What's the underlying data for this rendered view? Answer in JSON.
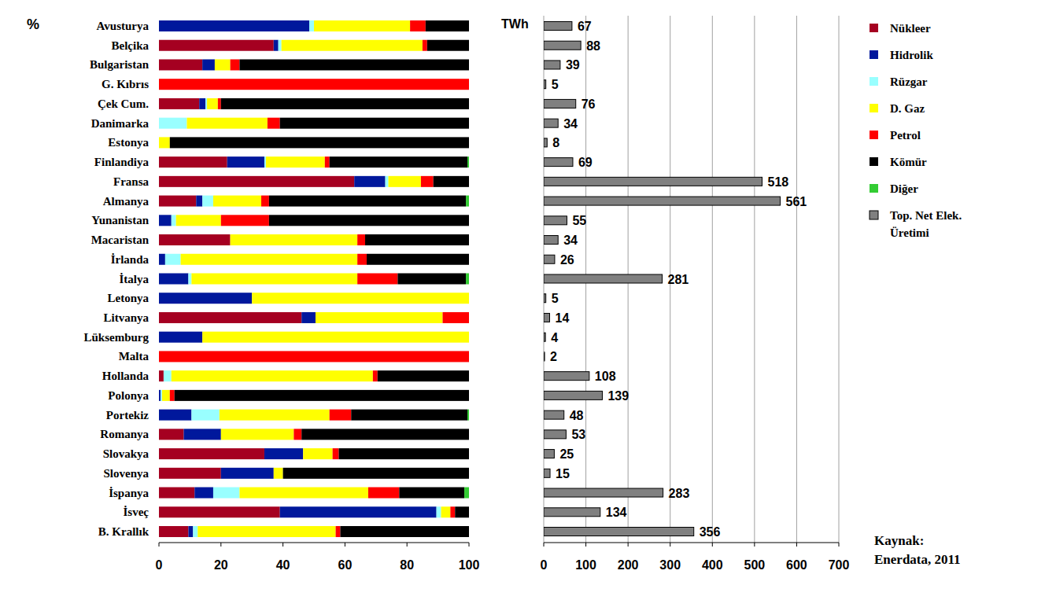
{
  "chart_data": [
    {
      "type": "bar",
      "orientation": "horizontal",
      "stacked": true,
      "title": "%",
      "categories": [
        "Avusturya",
        "Belçika",
        "Bulgaristan",
        "G. Kıbrıs",
        "Çek Cum.",
        "Danimarka",
        "Estonya",
        "Finlandiya",
        "Fransa",
        "Almanya",
        "Yunanistan",
        "Macaristan",
        "İrlanda",
        "İtalya",
        "Letonya",
        "Litvanya",
        "Lüksemburg",
        "Malta",
        "Hollanda",
        "Polonya",
        "Portekiz",
        "Romanya",
        "Slovakya",
        "Slovenya",
        "İspanya",
        "İsveç",
        "B. Krallık"
      ],
      "series": [
        {
          "name": "Nükleer",
          "color": "#A50021",
          "values": [
            0,
            37,
            14,
            0,
            13,
            0,
            0,
            22,
            63,
            12,
            0,
            23,
            0,
            0,
            0,
            46,
            0,
            0,
            1.5,
            0,
            0,
            8,
            34,
            20,
            11.5,
            39,
            9.5
          ]
        },
        {
          "name": "Hidrolik",
          "color": "#00189C",
          "values": [
            48.5,
            1.5,
            4,
            0,
            2,
            0,
            0,
            12,
            10,
            2,
            4,
            0,
            2,
            9.5,
            30,
            4.5,
            14,
            0,
            0,
            0.5,
            10.5,
            12,
            12.5,
            17,
            6,
            50.5,
            1.5
          ]
        },
        {
          "name": "Rüzgar",
          "color": "#99FFFF",
          "values": [
            1.5,
            1,
            0,
            0,
            0.5,
            9,
            0,
            0.5,
            1,
            3.5,
            1.5,
            0,
            5,
            1,
            0,
            0,
            0,
            0,
            2.5,
            0.5,
            9,
            0,
            0,
            0,
            8.5,
            1.5,
            1.5
          ]
        },
        {
          "name": "D. Gaz",
          "color": "#FFFF00",
          "values": [
            31,
            45.5,
            5,
            0,
            3.5,
            26,
            3.5,
            19,
            10.5,
            15.5,
            14.5,
            41,
            57,
            53.5,
            70,
            41,
            86,
            0,
            65,
            2.5,
            35.5,
            23.5,
            9.5,
            3,
            41.5,
            3,
            44.5
          ]
        },
        {
          "name": "Petrol",
          "color": "#FF0000",
          "values": [
            5,
            1.5,
            3,
            100,
            1,
            4,
            0,
            1.5,
            4,
            2.5,
            15.5,
            2.5,
            3,
            13,
            0,
            8.5,
            0,
            100,
            1.5,
            1.5,
            7,
            2.5,
            2,
            0,
            10,
            1.5,
            1.5
          ]
        },
        {
          "name": "Kömür",
          "color": "#000000",
          "values": [
            14,
            13.5,
            74,
            0,
            80,
            61,
            96.5,
            44.5,
            11.5,
            63.5,
            64.5,
            33.5,
            33,
            22,
            0,
            0,
            0,
            0,
            29.5,
            95,
            37.5,
            54,
            42,
            60,
            21,
            4.5,
            41.5
          ]
        },
        {
          "name": "Diğer",
          "color": "#33CC33",
          "values": [
            0,
            0,
            0,
            0,
            0,
            0,
            0,
            0.5,
            0,
            1,
            0,
            0,
            0,
            1,
            0,
            0,
            0,
            0,
            0,
            0,
            0.5,
            0,
            0,
            0,
            1.5,
            0,
            0
          ]
        }
      ],
      "xlim": [
        0,
        100
      ],
      "xticks": [
        0,
        20,
        40,
        60,
        80,
        100
      ],
      "legend": "right"
    },
    {
      "type": "bar",
      "orientation": "horizontal",
      "title": "TWh",
      "categories": [
        null,
        null,
        null,
        null,
        null,
        null,
        null,
        null,
        null,
        null,
        null,
        null,
        null,
        null,
        null,
        null,
        null,
        null,
        null,
        null,
        null,
        null,
        null,
        null,
        null,
        null,
        null
      ],
      "series": [
        {
          "name": "Top. Net Elek. Üretimi",
          "color": "#808080",
          "values": [
            67,
            88,
            39,
            5,
            76,
            34,
            8,
            69,
            518,
            561,
            55,
            34,
            26,
            281,
            5,
            14,
            4,
            2,
            108,
            139,
            48,
            53,
            25,
            15,
            283,
            134,
            356
          ]
        }
      ],
      "xlim": [
        0,
        700
      ],
      "xticks": [
        0,
        100,
        200,
        300,
        400,
        500,
        600,
        700
      ],
      "grid": true,
      "data_labels": true,
      "tick_labels": "x",
      "legend": "right",
      "annotations": [
        "Kaynak:",
        "Enerdata, 2011"
      ]
    }
  ]
}
